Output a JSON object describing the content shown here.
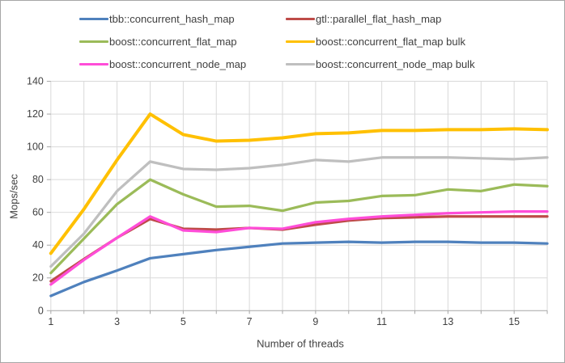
{
  "chart_data": {
    "type": "line",
    "title": "",
    "xlabel": "Number of threads",
    "ylabel": "Mops/sec",
    "x": [
      1,
      2,
      3,
      4,
      5,
      6,
      7,
      8,
      9,
      10,
      11,
      12,
      13,
      14,
      15,
      16
    ],
    "xlim": [
      1,
      16
    ],
    "ylim": [
      0,
      140
    ],
    "ytick_step": 20,
    "xtick_labels": [
      1,
      3,
      5,
      7,
      9,
      11,
      13,
      15
    ],
    "grid": true,
    "legend_position": "top",
    "series": [
      {
        "name": "tbb::concurrent_hash_map",
        "color": "#4F81BD",
        "width": 3.25,
        "values": [
          9,
          17.5,
          24.5,
          32,
          34.5,
          37,
          39,
          41,
          41.5,
          42,
          41.5,
          42,
          42,
          41.5,
          41.5,
          41
        ]
      },
      {
        "name": "gtl::parallel_flat_hash_map",
        "color": "#BE4B48",
        "width": 3.25,
        "values": [
          18,
          31.5,
          44.5,
          56,
          50,
          49.5,
          50.5,
          49.5,
          52.5,
          55,
          56.5,
          57,
          57.5,
          57.5,
          57.5,
          57.5
        ]
      },
      {
        "name": "boost::concurrent_flat_map",
        "color": "#9BBB59",
        "width": 3.25,
        "values": [
          23,
          44,
          65,
          80,
          71,
          63.5,
          64,
          61,
          66,
          67,
          70,
          70.5,
          74,
          73,
          77,
          76
        ]
      },
      {
        "name": "boost::concurrent_flat_map bulk",
        "color": "#FFC000",
        "width": 4,
        "values": [
          35,
          62,
          92,
          120,
          107.5,
          103.5,
          104,
          105.5,
          108,
          108.5,
          110,
          110,
          110.5,
          110.5,
          111,
          110.5
        ]
      },
      {
        "name": "boost::concurrent_node_map",
        "color": "#FF4DD8",
        "width": 3.25,
        "values": [
          16,
          31,
          44.5,
          57.5,
          49,
          48,
          50.5,
          50,
          54,
          56,
          57.5,
          58.5,
          59.5,
          60,
          60.5,
          60.5
        ]
      },
      {
        "name": "boost::concurrent_node_map bulk",
        "color": "#BFBFBF",
        "width": 3.25,
        "values": [
          27,
          47,
          73,
          91,
          86.5,
          86,
          87,
          89,
          92,
          91,
          93.5,
          93.5,
          93.5,
          93,
          92.5,
          93.5
        ]
      }
    ],
    "colors": {
      "gridline": "#D9D9D9",
      "axis_line": "#A6A6A6",
      "tick_text": "#404040",
      "frame_border": "#A6A6A6",
      "background": "#FFFFFF"
    }
  }
}
